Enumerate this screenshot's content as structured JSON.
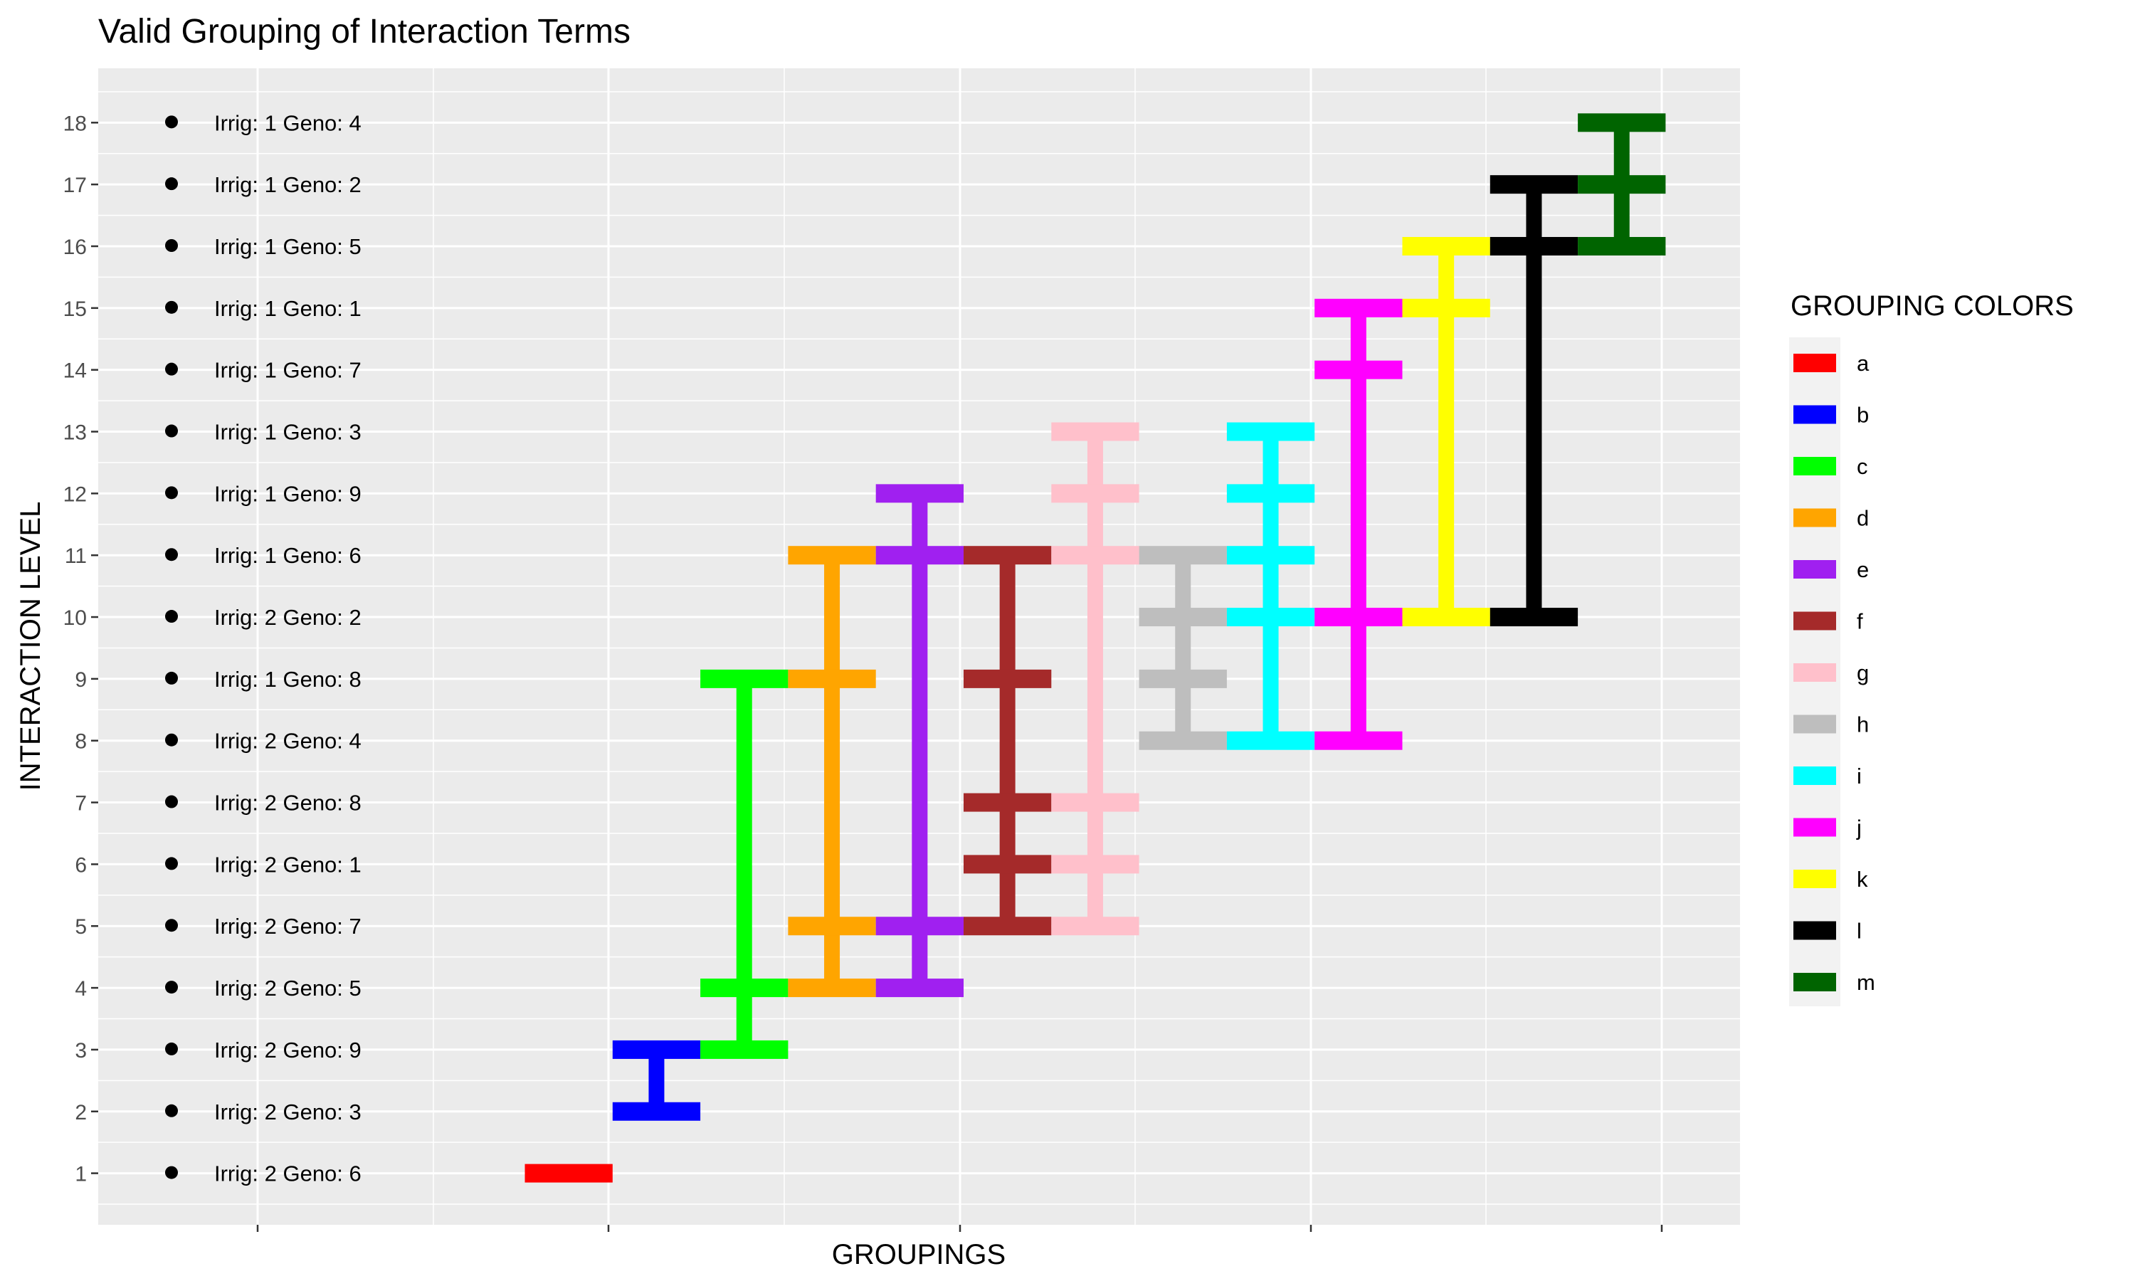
{
  "chart_data": {
    "type": "interval",
    "title": "Valid Grouping of Interaction Terms",
    "xlabel": "GROUPINGS",
    "ylabel": "INTERACTION LEVEL",
    "ylim": [
      0.5,
      18.5
    ],
    "y_ticks": [
      1,
      2,
      3,
      4,
      5,
      6,
      7,
      8,
      9,
      10,
      11,
      12,
      13,
      14,
      15,
      16,
      17,
      18
    ],
    "grid": true,
    "legend": {
      "title": "GROUPING COLORS",
      "position": "right"
    },
    "row_labels": [
      {
        "y": 1,
        "label": "Irrig: 2 Geno: 6"
      },
      {
        "y": 2,
        "label": "Irrig: 2 Geno: 3"
      },
      {
        "y": 3,
        "label": "Irrig: 2 Geno: 9"
      },
      {
        "y": 4,
        "label": "Irrig: 2 Geno: 5"
      },
      {
        "y": 5,
        "label": "Irrig: 2 Geno: 7"
      },
      {
        "y": 6,
        "label": "Irrig: 2 Geno: 1"
      },
      {
        "y": 7,
        "label": "Irrig: 2 Geno: 8"
      },
      {
        "y": 8,
        "label": "Irrig: 2 Geno: 4"
      },
      {
        "y": 9,
        "label": "Irrig: 1 Geno: 8"
      },
      {
        "y": 10,
        "label": "Irrig: 2 Geno: 2"
      },
      {
        "y": 11,
        "label": "Irrig: 1 Geno: 6"
      },
      {
        "y": 12,
        "label": "Irrig: 1 Geno: 9"
      },
      {
        "y": 13,
        "label": "Irrig: 1 Geno: 3"
      },
      {
        "y": 14,
        "label": "Irrig: 1 Geno: 7"
      },
      {
        "y": 15,
        "label": "Irrig: 1 Geno: 1"
      },
      {
        "y": 16,
        "label": "Irrig: 1 Geno: 5"
      },
      {
        "y": 17,
        "label": "Irrig: 1 Geno: 2"
      },
      {
        "y": 18,
        "label": "Irrig: 1 Geno: 4"
      }
    ],
    "series": [
      {
        "name": "a",
        "color": "#FF0000",
        "x": 1,
        "levels": [
          1
        ]
      },
      {
        "name": "b",
        "color": "#0000FF",
        "x": 2,
        "levels": [
          2,
          3
        ]
      },
      {
        "name": "c",
        "color": "#00FF00",
        "x": 3,
        "levels": [
          3,
          4,
          9
        ]
      },
      {
        "name": "d",
        "color": "#FFA500",
        "x": 4,
        "levels": [
          4,
          5,
          9,
          11
        ]
      },
      {
        "name": "e",
        "color": "#A020F0",
        "x": 5,
        "levels": [
          4,
          5,
          11,
          12
        ]
      },
      {
        "name": "f",
        "color": "#A52A2A",
        "x": 6,
        "levels": [
          5,
          6,
          7,
          9,
          11
        ]
      },
      {
        "name": "g",
        "color": "#FFC0CB",
        "x": 7,
        "levels": [
          5,
          6,
          7,
          11,
          12,
          13
        ]
      },
      {
        "name": "h",
        "color": "#BEBEBE",
        "x": 8,
        "levels": [
          8,
          9,
          10,
          11
        ]
      },
      {
        "name": "i",
        "color": "#00FFFF",
        "x": 9,
        "levels": [
          8,
          10,
          11,
          12,
          13
        ]
      },
      {
        "name": "j",
        "color": "#FF00FF",
        "x": 10,
        "levels": [
          8,
          10,
          14,
          15
        ]
      },
      {
        "name": "k",
        "color": "#FFFF00",
        "x": 11,
        "levels": [
          10,
          15,
          16
        ]
      },
      {
        "name": "l",
        "color": "#000000",
        "x": 12,
        "levels": [
          10,
          16,
          17
        ]
      },
      {
        "name": "m",
        "color": "#006400",
        "x": 13,
        "levels": [
          16,
          17,
          18
        ]
      }
    ]
  }
}
